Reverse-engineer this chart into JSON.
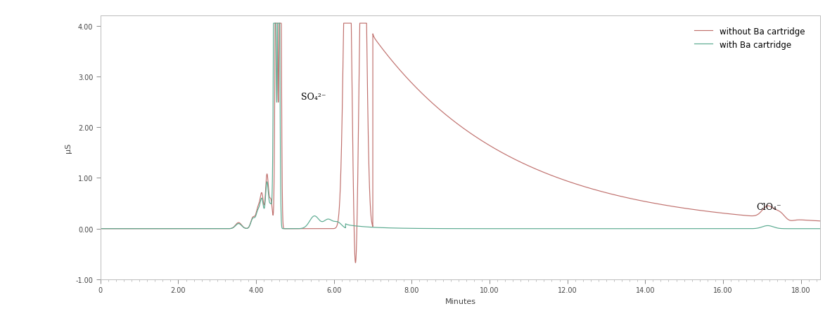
{
  "title": "",
  "xlabel": "Minutes",
  "ylabel": "μS",
  "xlim": [
    0,
    18.5
  ],
  "ylim": [
    -1.0,
    4.2
  ],
  "yticks": [
    -1.0,
    0,
    1.0,
    2.0,
    3.0,
    4.0
  ],
  "xticks": [
    0,
    2.0,
    4.0,
    6.0,
    8.0,
    10.0,
    12.0,
    14.0,
    16.0,
    18.0
  ],
  "color_red": "#c0706d",
  "color_green": "#5aaa90",
  "legend_labels": [
    "without Ba cartridge",
    "with Ba cartridge"
  ],
  "annotation_so4": "SO₄²⁻",
  "annotation_clo4": "ClO₄⁻",
  "so4_x": 5.15,
  "so4_y": 2.55,
  "clo4_x": 16.85,
  "clo4_y": 0.38,
  "background_color": "#ffffff",
  "linewidth": 0.85
}
